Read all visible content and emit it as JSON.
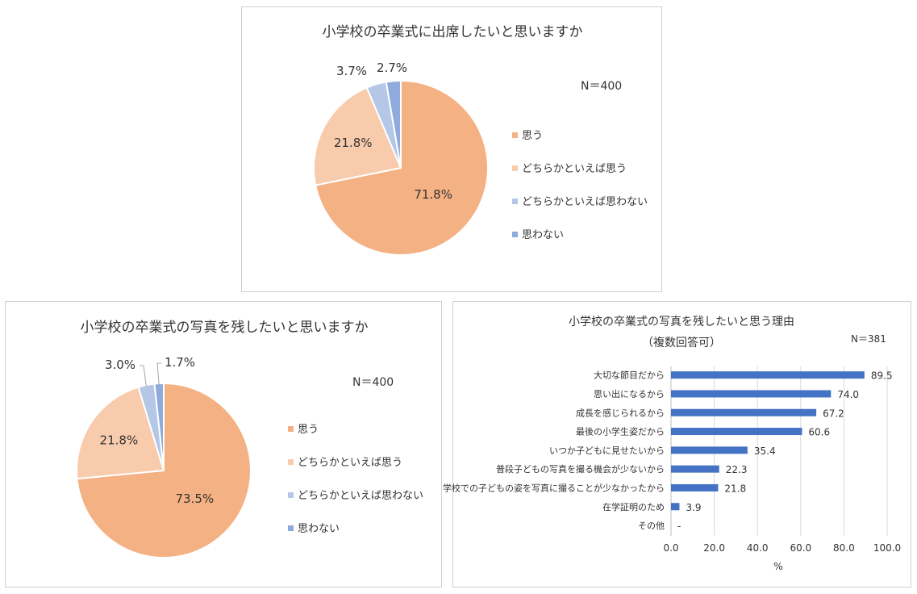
{
  "charts": [
    {
      "type": "pie",
      "title": "小学校の卒業式に出席したいと思いますか",
      "n_label": "N＝400",
      "categories": [
        "思う",
        "どちらかといえば思う",
        "どちらかといえば思わない",
        "思わない"
      ],
      "values": [
        71.8,
        21.8,
        3.7,
        2.7
      ],
      "labels": [
        "71.8%",
        "21.8%",
        "3.7%",
        "2.7%"
      ],
      "colors": [
        "#F4B183",
        "#F8CBAD",
        "#B4C7E7",
        "#8FAADC"
      ],
      "legend": "right"
    },
    {
      "type": "pie",
      "title": "小学校の卒業式の写真を残したいと思いますか",
      "n_label": "N＝400",
      "categories": [
        "思う",
        "どちらかといえば思う",
        "どちらかといえば思わない",
        "思わない"
      ],
      "values": [
        73.5,
        21.8,
        3.0,
        1.7
      ],
      "labels": [
        "73.5%",
        "21.8%",
        "3.0%",
        "1.7%"
      ],
      "colors": [
        "#F4B183",
        "#F8CBAD",
        "#B4C7E7",
        "#8FAADC"
      ],
      "legend": "right"
    },
    {
      "type": "bar",
      "orientation": "horizontal",
      "title": "小学校の卒業式の写真を残したいと思う理由",
      "subtitle": "（複数回答可）",
      "n_label": "N＝381",
      "xlabel": "%",
      "xlim": [
        0,
        100
      ],
      "xticks": [
        "0.0",
        "20.0",
        "40.0",
        "60.0",
        "80.0",
        "100.0"
      ],
      "categories": [
        "大切な節目だから",
        "思い出になるから",
        "成長を感じられるから",
        "最後の小学生姿だから",
        "いつか子どもに見せたいから",
        "普段子どもの写真を撮る機会が少ないから",
        "学校での子どもの姿を写真に撮ることが少なかったから",
        "在学証明のため",
        "その他"
      ],
      "values": [
        89.5,
        74.0,
        67.2,
        60.6,
        35.4,
        22.3,
        21.8,
        3.9,
        null
      ],
      "value_labels": [
        "89.5",
        "74.0",
        "67.2",
        "60.6",
        "35.4",
        "22.3",
        "21.8",
        "3.9",
        "-"
      ],
      "color": "#4472C4",
      "grid": true
    }
  ]
}
